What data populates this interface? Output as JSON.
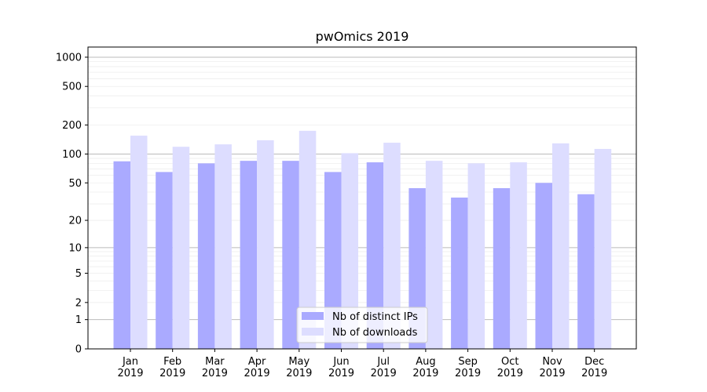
{
  "chart_data": {
    "type": "bar",
    "title": "pwOmics 2019",
    "xlabel": "",
    "ylabel": "",
    "yscale": "log(1+x)",
    "ylim": [
      0,
      1270
    ],
    "yticks": [
      0,
      1,
      2,
      5,
      10,
      20,
      50,
      100,
      200,
      500,
      1000
    ],
    "grid": true,
    "legend_placement": "bottom-center",
    "categories": [
      "Jan\n2019",
      "Feb\n2019",
      "Mar\n2019",
      "Apr\n2019",
      "May\n2019",
      "Jun\n2019",
      "Jul\n2019",
      "Aug\n2019",
      "Sep\n2019",
      "Oct\n2019",
      "Nov\n2019",
      "Dec\n2019"
    ],
    "series": [
      {
        "name": "Nb of distinct IPs",
        "color": "#aaaaff",
        "values": [
          84,
          65,
          80,
          85,
          85,
          65,
          82,
          44,
          35,
          44,
          50,
          38
        ]
      },
      {
        "name": "Nb of downloads",
        "color": "#ddddff",
        "values": [
          155,
          119,
          126,
          139,
          174,
          102,
          131,
          85,
          80,
          82,
          129,
          113
        ]
      }
    ]
  }
}
